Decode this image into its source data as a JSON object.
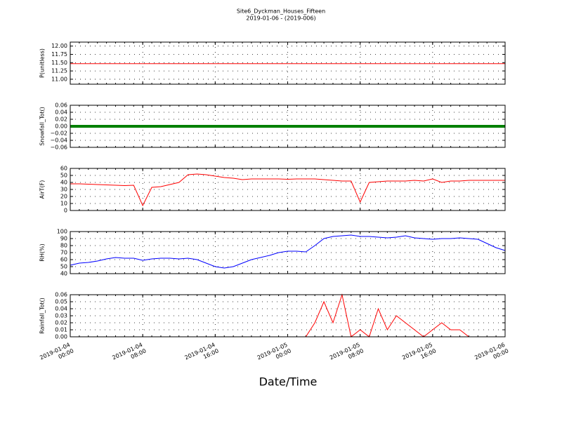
{
  "chart_data": [
    {
      "type": "line",
      "title": "Site6_Dyckman_Houses_Fifteen",
      "subtitle": "2019-01-06 - (2019-006)",
      "ylabel": "P(unitless)",
      "color": "#ff0000",
      "grid": true,
      "ylim": [
        10.85,
        12.12
      ],
      "yticks": [
        {
          "value": 11.0,
          "label": "11.00"
        },
        {
          "value": 11.25,
          "label": "11.25"
        },
        {
          "value": 11.5,
          "label": "11.50"
        },
        {
          "value": 11.75,
          "label": "11.75"
        },
        {
          "value": 12.0,
          "label": "12.00"
        }
      ],
      "values": [
        11.47,
        11.47,
        11.47,
        11.47,
        11.47,
        11.47,
        11.47,
        11.47,
        11.47,
        11.47,
        11.47,
        11.47,
        11.47,
        11.47,
        11.47,
        11.47,
        11.47,
        11.47,
        11.47,
        11.47,
        11.47,
        11.47,
        11.47,
        11.47,
        11.47,
        11.47,
        11.47,
        11.47,
        11.47,
        11.47,
        11.47,
        11.47,
        11.47,
        11.47,
        11.47,
        11.47,
        11.47,
        11.47,
        11.47,
        11.47,
        11.47,
        11.47,
        11.47,
        11.47,
        11.47,
        11.47,
        11.47,
        11.47,
        11.47
      ]
    },
    {
      "type": "line",
      "ylabel": "Snowfall_Tot()",
      "color": "#008000",
      "grid": true,
      "ylim": [
        -0.06,
        0.06
      ],
      "yticks": [
        {
          "value": -0.06,
          "label": "−0.06"
        },
        {
          "value": -0.04,
          "label": "−0.04"
        },
        {
          "value": -0.02,
          "label": "−0.02"
        },
        {
          "value": 0,
          "label": "0.00"
        },
        {
          "value": 0.02,
          "label": "0.02"
        },
        {
          "value": 0.04,
          "label": "0.04"
        },
        {
          "value": 0.06,
          "label": "0.06"
        }
      ],
      "values": [
        0,
        0,
        0,
        0,
        0,
        0,
        0,
        0,
        0,
        0,
        0,
        0,
        0,
        0,
        0,
        0,
        0,
        0,
        0,
        0,
        0,
        0,
        0,
        0,
        0,
        0,
        0,
        0,
        0,
        0,
        0,
        0,
        0,
        0,
        0,
        0,
        0,
        0,
        0,
        0,
        0,
        0,
        0,
        0,
        0,
        0,
        0,
        0,
        0
      ]
    },
    {
      "type": "line",
      "ylabel": "AirT(F)",
      "color": "#ff0000",
      "grid": true,
      "ylim": [
        0,
        60
      ],
      "yticks": [
        0,
        10,
        20,
        30,
        40,
        50,
        60
      ],
      "values": [
        38,
        38,
        37.5,
        37,
        36.5,
        36,
        35.5,
        36,
        7,
        33,
        34,
        37,
        40,
        51,
        52,
        51,
        49,
        47,
        46,
        44,
        45,
        45,
        45,
        45,
        44.5,
        45,
        45,
        45,
        44,
        43,
        42,
        42,
        12,
        40,
        41,
        42,
        42,
        42,
        43,
        42,
        45,
        40,
        42,
        42,
        43,
        43,
        43,
        43,
        43
      ]
    },
    {
      "type": "line",
      "ylabel": "RH(%)",
      "color": "#0000ff",
      "grid": true,
      "ylim": [
        40,
        100
      ],
      "yticks": [
        40,
        50,
        60,
        70,
        80,
        90,
        100
      ],
      "values": [
        52,
        55,
        56,
        58,
        61,
        63,
        62,
        62,
        59,
        61,
        62,
        62,
        61,
        62,
        60,
        55,
        50,
        48,
        50,
        55,
        60,
        63,
        66,
        70,
        72,
        72,
        71,
        80,
        90,
        93,
        94,
        95,
        93,
        93,
        92,
        91,
        92,
        94,
        91,
        90,
        89,
        90,
        90,
        91,
        90,
        89,
        83,
        77,
        73
      ]
    },
    {
      "type": "line",
      "ylabel": "Rainfall_Tot()",
      "xlabel": "Date/Time",
      "color": "#ff0000",
      "grid": true,
      "ylim": [
        0,
        0.06
      ],
      "yticks": [
        {
          "value": 0,
          "label": "0.00"
        },
        {
          "value": 0.01,
          "label": "0.01"
        },
        {
          "value": 0.02,
          "label": "0.02"
        },
        {
          "value": 0.03,
          "label": "0.03"
        },
        {
          "value": 0.04,
          "label": "0.04"
        },
        {
          "value": 0.05,
          "label": "0.05"
        },
        {
          "value": 0.06,
          "label": "0.06"
        }
      ],
      "values": [
        0,
        0,
        0,
        0,
        0,
        0,
        0,
        0,
        0,
        0,
        0,
        0,
        0,
        0,
        0,
        0,
        0,
        0,
        0,
        0,
        0,
        0,
        0,
        0,
        0,
        0,
        0,
        0.02,
        0.05,
        0.02,
        0.06,
        0,
        0.01,
        0,
        0.04,
        0.01,
        0.03,
        0.02,
        0.01,
        0,
        0.01,
        0.02,
        0.01,
        0.01,
        0,
        0,
        0,
        0,
        0
      ],
      "xlim": [
        "2019-01-04 00:00",
        "2019-01-06 00:00"
      ],
      "xticks": [
        "2019-01-04 00:00",
        "2019-01-04 08:00",
        "2019-01-04 16:00",
        "2019-01-05 00:00",
        "2019-01-05 08:00",
        "2019-01-05 16:00",
        "2019-01-06 00:00"
      ],
      "x": [
        "2019-01-04 00:00",
        "2019-01-04 01:00",
        "2019-01-04 02:00",
        "2019-01-04 03:00",
        "2019-01-04 04:00",
        "2019-01-04 05:00",
        "2019-01-04 06:00",
        "2019-01-04 07:00",
        "2019-01-04 08:00",
        "2019-01-04 09:00",
        "2019-01-04 10:00",
        "2019-01-04 11:00",
        "2019-01-04 12:00",
        "2019-01-04 13:00",
        "2019-01-04 14:00",
        "2019-01-04 15:00",
        "2019-01-04 16:00",
        "2019-01-04 17:00",
        "2019-01-04 18:00",
        "2019-01-04 19:00",
        "2019-01-04 20:00",
        "2019-01-04 21:00",
        "2019-01-04 22:00",
        "2019-01-04 23:00",
        "2019-01-05 00:00",
        "2019-01-05 01:00",
        "2019-01-05 02:00",
        "2019-01-05 03:00",
        "2019-01-05 04:00",
        "2019-01-05 05:00",
        "2019-01-05 06:00",
        "2019-01-05 07:00",
        "2019-01-05 08:00",
        "2019-01-05 09:00",
        "2019-01-05 10:00",
        "2019-01-05 11:00",
        "2019-01-05 12:00",
        "2019-01-05 13:00",
        "2019-01-05 14:00",
        "2019-01-05 15:00",
        "2019-01-05 16:00",
        "2019-01-05 17:00",
        "2019-01-05 18:00",
        "2019-01-05 19:00",
        "2019-01-05 20:00",
        "2019-01-05 21:00",
        "2019-01-05 22:00",
        "2019-01-05 23:00",
        "2019-01-06 00:00"
      ]
    }
  ]
}
